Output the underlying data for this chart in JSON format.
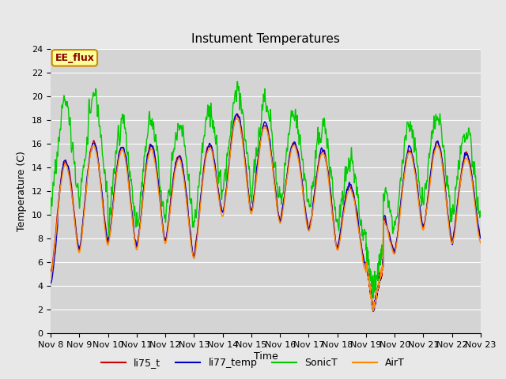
{
  "title": "Instument Temperatures",
  "xlabel": "Time",
  "ylabel": "Temperature (C)",
  "ylim": [
    0,
    24
  ],
  "yticks": [
    0,
    2,
    4,
    6,
    8,
    10,
    12,
    14,
    16,
    18,
    20,
    22,
    24
  ],
  "xtick_labels": [
    "Nov 8",
    "Nov 9",
    "Nov 10",
    "Nov 11",
    "Nov 12",
    "Nov 13",
    "Nov 14",
    "Nov 15",
    "Nov 16",
    "Nov 17",
    "Nov 18",
    "Nov 19",
    "Nov 20",
    "Nov 21",
    "Nov 22",
    "Nov 23"
  ],
  "colors": {
    "li75_t": "#cc0000",
    "li77_temp": "#0000cc",
    "SonicT": "#00cc00",
    "AirT": "#ff8800"
  },
  "fig_bg": "#e8e8e8",
  "plot_bg": "#d4d4d4",
  "annotation_text": "EE_flux",
  "annotation_bg": "#ffff99",
  "annotation_edge": "#cc8800",
  "annotation_text_color": "#880000",
  "linewidth": 1.0,
  "title_fontsize": 11,
  "tick_fontsize": 8,
  "label_fontsize": 9,
  "legend_fontsize": 9
}
